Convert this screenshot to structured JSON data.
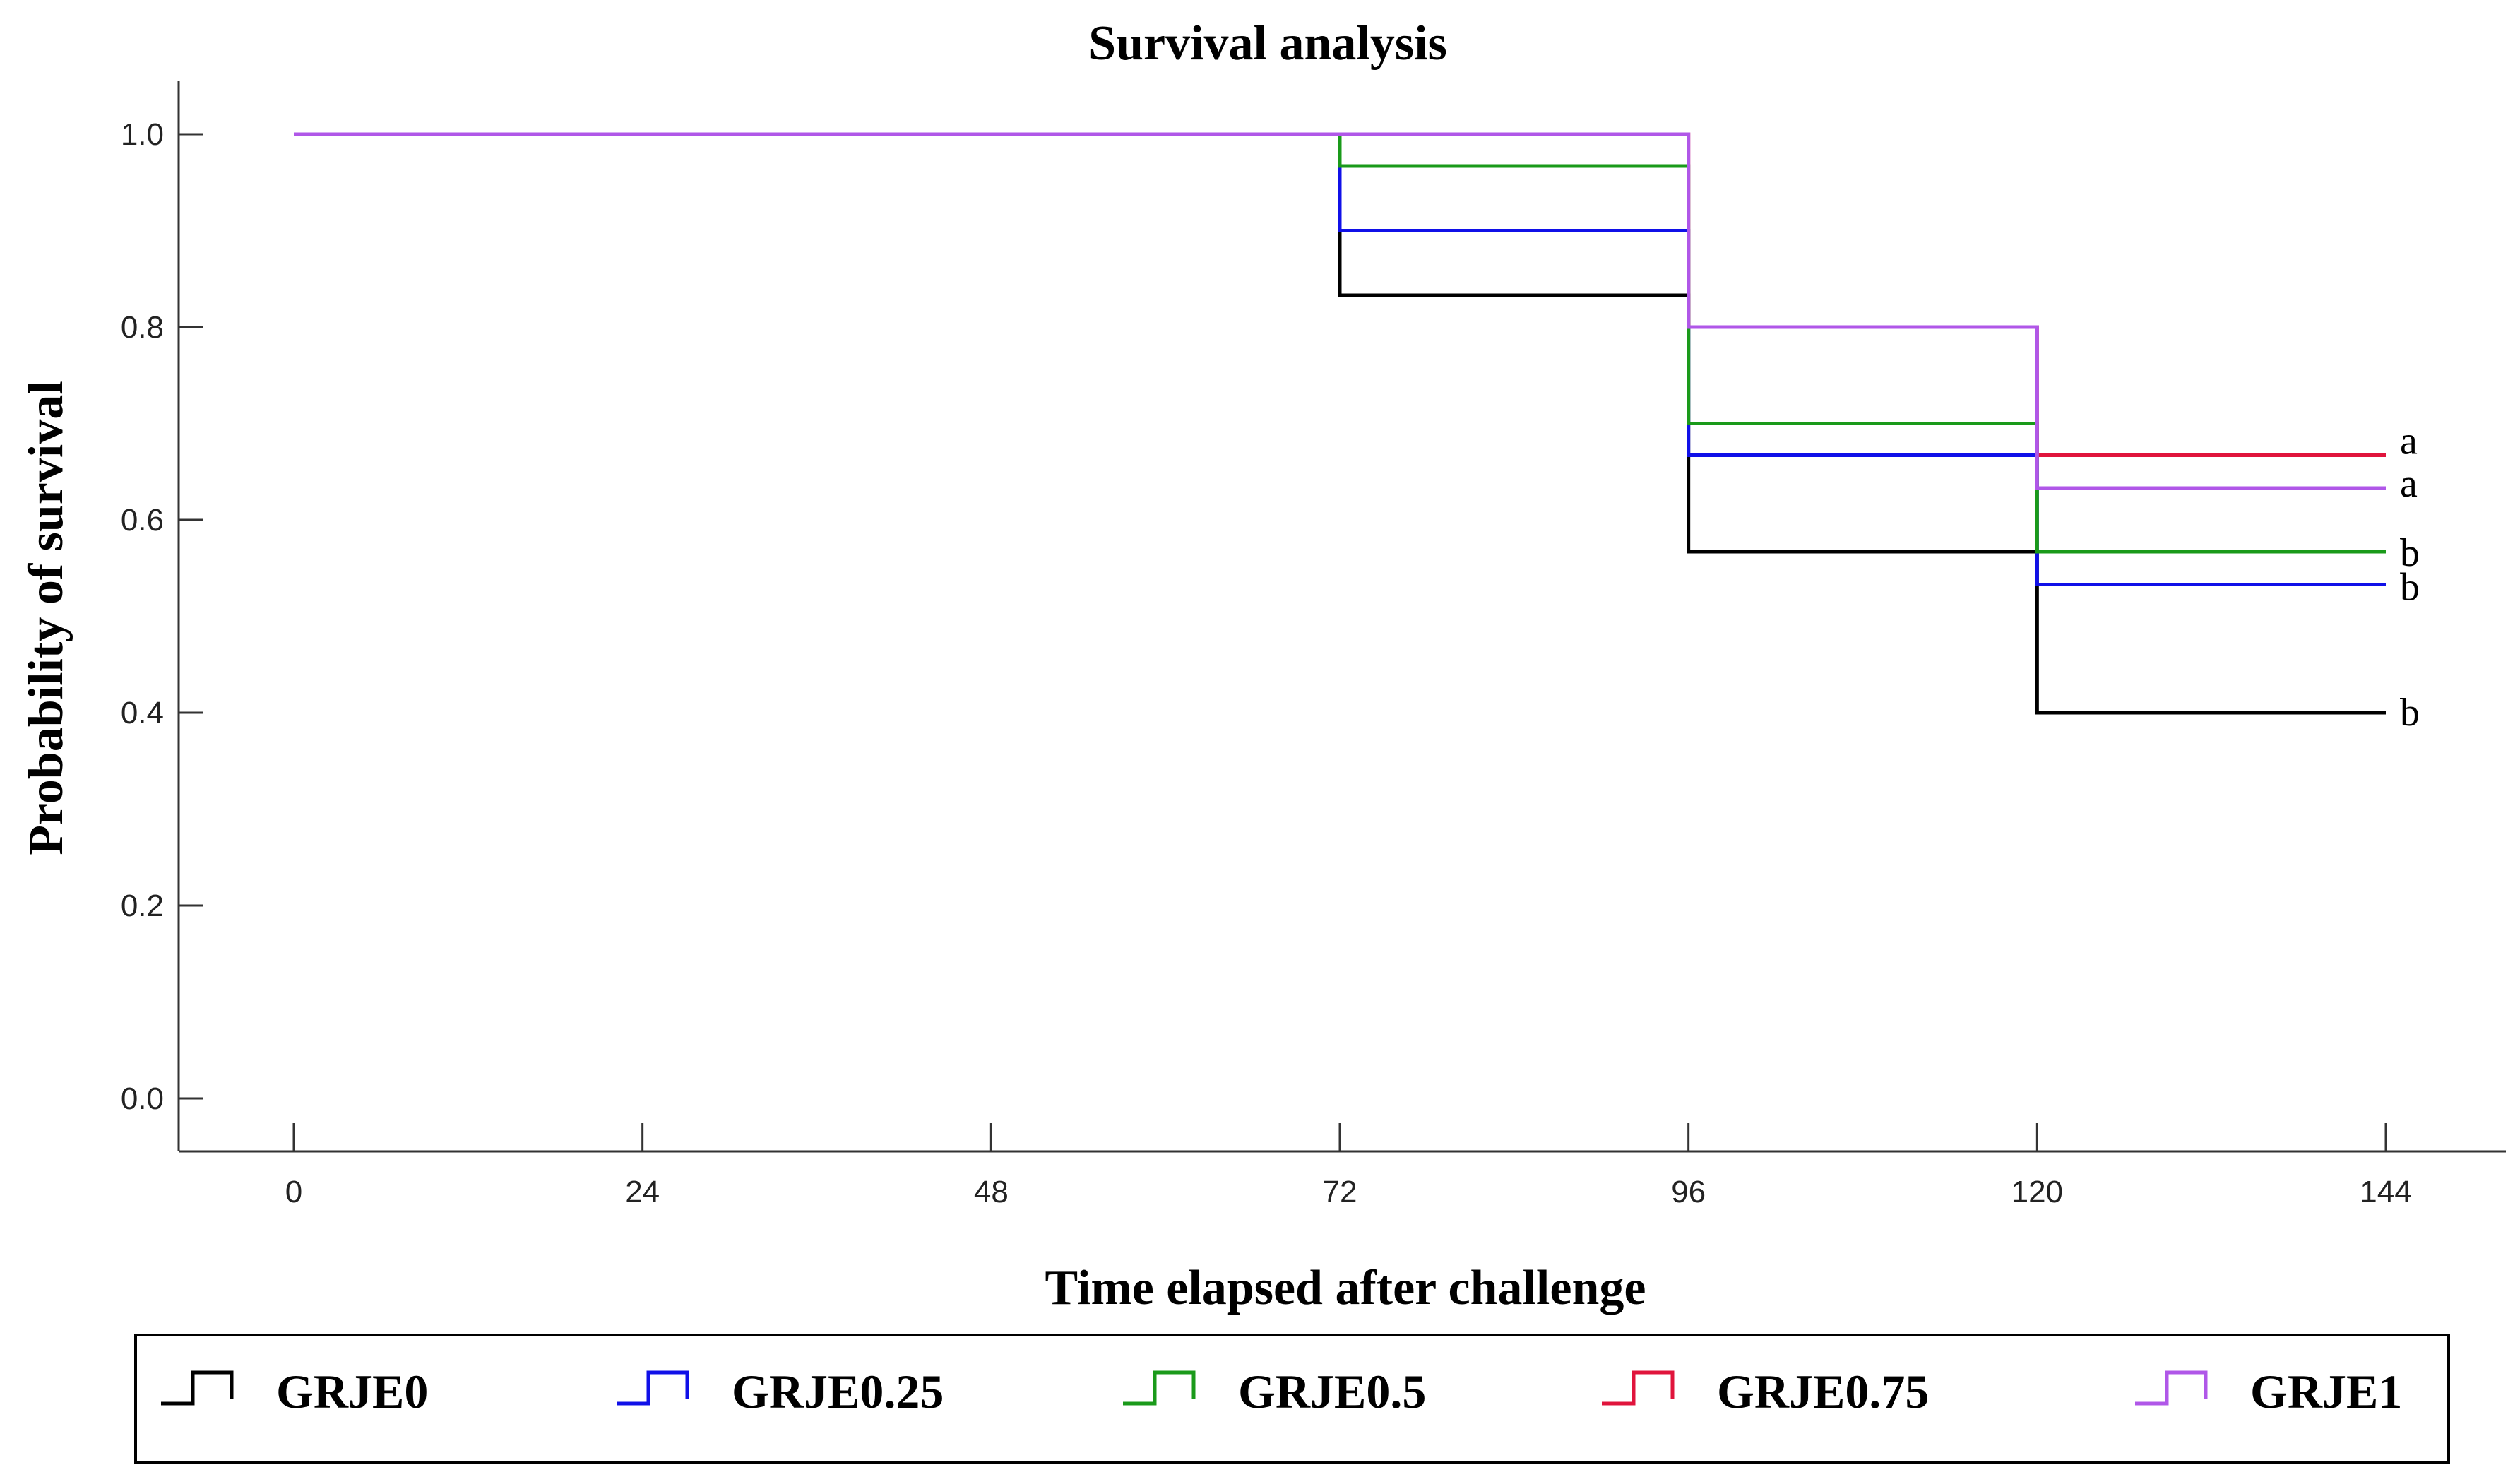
{
  "chart_data": {
    "type": "line",
    "subtype": "step",
    "title": "Survival analysis",
    "xlabel": "Time elapsed after challenge",
    "ylabel": "Probability of survival",
    "xlim": [
      0,
      144
    ],
    "ylim": [
      0.0,
      1.0
    ],
    "x_ticks": [
      0,
      24,
      48,
      72,
      96,
      120,
      144
    ],
    "x_tick_labels": [
      "0",
      "24",
      "48",
      "72",
      "96",
      "120",
      "144"
    ],
    "y_ticks": [
      0.0,
      0.2,
      0.4,
      0.6,
      0.8,
      1.0
    ],
    "y_tick_labels": [
      "0.0",
      "0.2",
      "0.4",
      "0.6",
      "0.8",
      "1.0"
    ],
    "grid": false,
    "legend_position": "bottom",
    "series": [
      {
        "name": "GRJE0",
        "color": "#000000",
        "x": [
          0,
          72,
          96,
          120,
          144
        ],
        "values": [
          1.0,
          0.833,
          0.567,
          0.4,
          0.4
        ],
        "significance": "b"
      },
      {
        "name": "GRJE0.25",
        "color": "#1010e8",
        "x": [
          0,
          72,
          96,
          120,
          144
        ],
        "values": [
          1.0,
          0.9,
          0.667,
          0.533,
          0.533
        ],
        "significance": "b"
      },
      {
        "name": "GRJE0.5",
        "color": "#1a9a1a",
        "x": [
          0,
          72,
          96,
          120,
          144
        ],
        "values": [
          1.0,
          0.967,
          0.7,
          0.567,
          0.567
        ],
        "significance": "b"
      },
      {
        "name": "GRJE0.75",
        "color": "#e0143c",
        "x": [
          0,
          72,
          96,
          120,
          144
        ],
        "values": [
          1.0,
          1.0,
          0.8,
          0.667,
          0.667
        ],
        "significance": "a"
      },
      {
        "name": "GRJE1",
        "color": "#b057e8",
        "x": [
          0,
          72,
          96,
          120,
          144
        ],
        "values": [
          1.0,
          1.0,
          0.8,
          0.633,
          0.633
        ],
        "significance": "a"
      }
    ]
  }
}
